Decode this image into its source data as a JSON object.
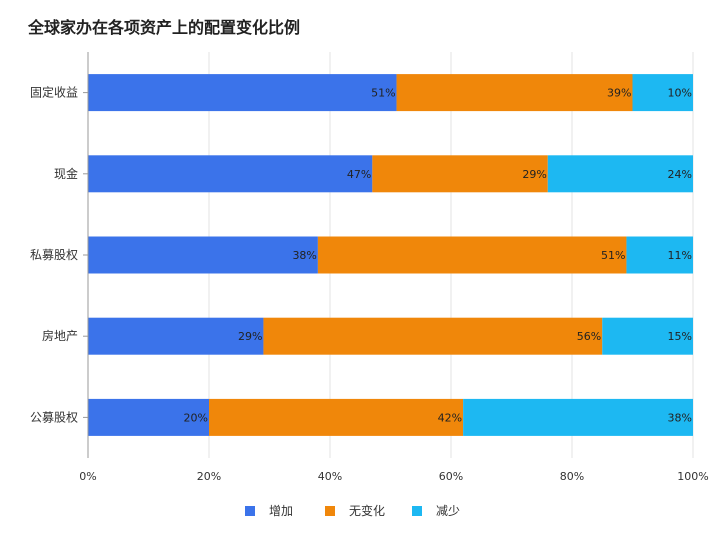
{
  "chart_data": {
    "type": "bar",
    "orientation": "horizontal",
    "stacked": true,
    "title": "全球家办在各项资产上的配置变化比例",
    "categories": [
      "固定收益",
      "现金",
      "私募股权",
      "房地产",
      "公募股权"
    ],
    "series": [
      {
        "name": "增加",
        "color": "#3B73EA",
        "values": [
          51,
          47,
          38,
          29,
          20
        ]
      },
      {
        "name": "无变化",
        "color": "#F0870A",
        "values": [
          39,
          29,
          51,
          56,
          42
        ]
      },
      {
        "name": "减少",
        "color": "#1DB8F2",
        "values": [
          10,
          24,
          11,
          15,
          38
        ]
      }
    ],
    "xlim": [
      0,
      100
    ],
    "xticks": [
      "0%",
      "20%",
      "40%",
      "60%",
      "80%",
      "100%"
    ],
    "value_suffix": "%",
    "grid": true,
    "legend_position": "bottom"
  }
}
